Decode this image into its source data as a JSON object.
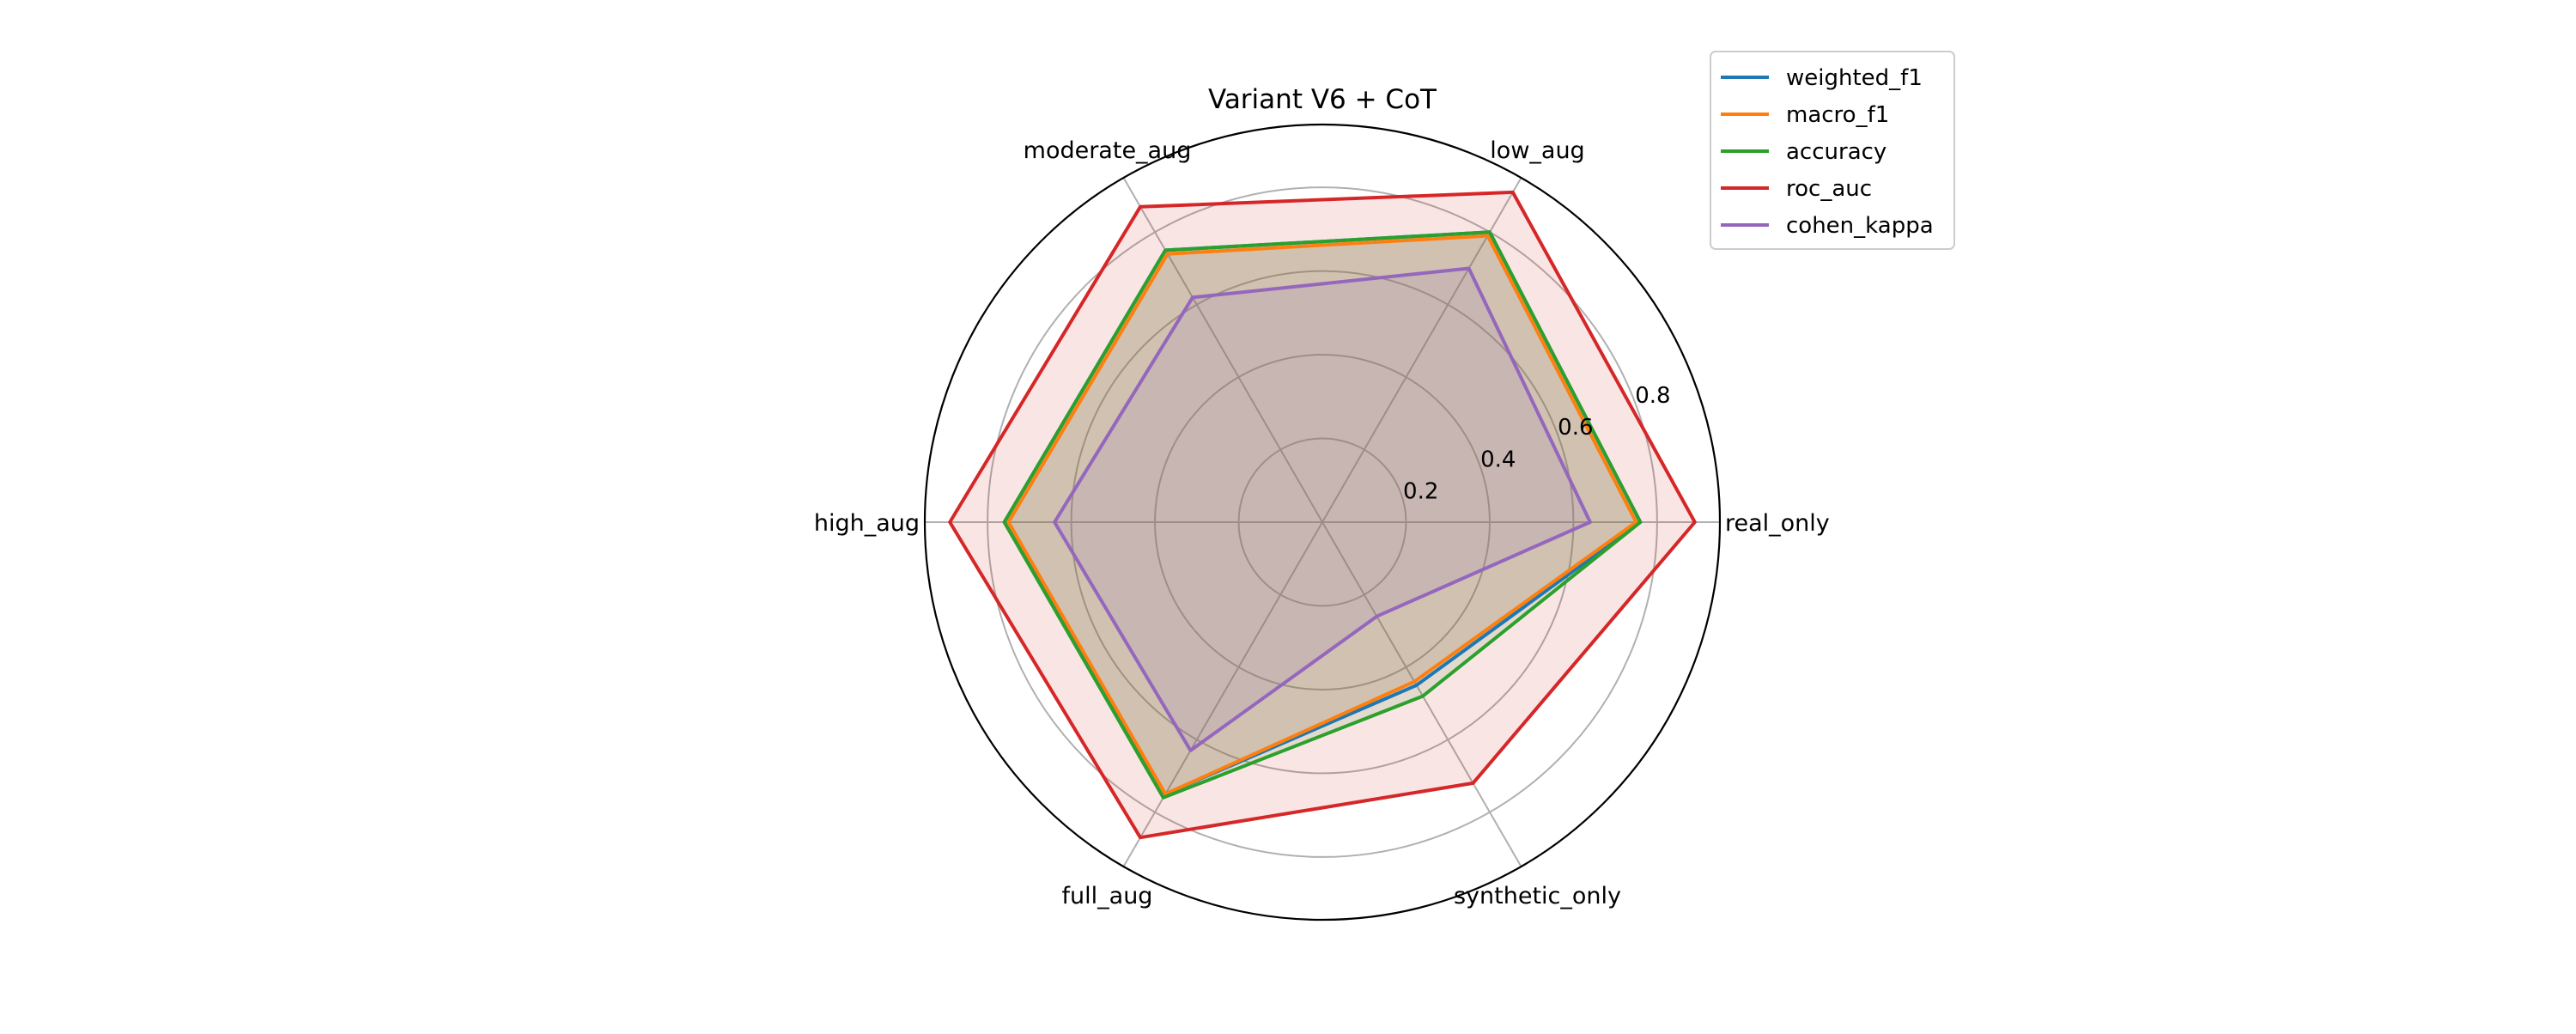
{
  "chart_data": {
    "type": "radar",
    "title": "Variant V6 + CoT",
    "categories": [
      "real_only",
      "low_aug",
      "moderate_aug",
      "high_aug",
      "full_aug",
      "synthetic_only"
    ],
    "radial_ticks": [
      "0.2",
      "0.4",
      "0.6",
      "0.8"
    ],
    "radial_tick_values": [
      0.2,
      0.4,
      0.6,
      0.8
    ],
    "rmax": 0.95,
    "grid": true,
    "legend_position": "top-right",
    "series": [
      {
        "name": "weighted_f1",
        "color": "#1f77b4",
        "values": [
          0.76,
          0.8,
          0.75,
          0.76,
          0.75,
          0.45
        ]
      },
      {
        "name": "macro_f1",
        "color": "#ff7f0e",
        "values": [
          0.75,
          0.79,
          0.74,
          0.75,
          0.75,
          0.44
        ]
      },
      {
        "name": "accuracy",
        "color": "#2ca02c",
        "values": [
          0.76,
          0.8,
          0.75,
          0.76,
          0.76,
          0.48
        ]
      },
      {
        "name": "roc_auc",
        "color": "#d62728",
        "values": [
          0.89,
          0.91,
          0.87,
          0.89,
          0.87,
          0.72
        ]
      },
      {
        "name": "cohen_kappa",
        "color": "#9467bd",
        "values": [
          0.64,
          0.7,
          0.62,
          0.64,
          0.63,
          0.26
        ]
      }
    ]
  }
}
